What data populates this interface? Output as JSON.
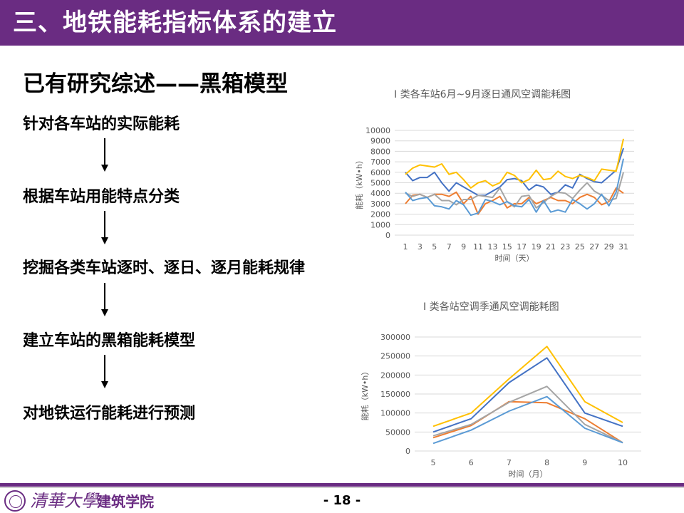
{
  "header": {
    "title": "三、地铁能耗指标体系的建立"
  },
  "section": {
    "subtitle": "已有研究综述——黑箱模型"
  },
  "flow_steps": [
    "针对各车站的实际能耗",
    "根据车站用能特点分类",
    "挖掘各类车站逐时、逐日、逐月能耗规律",
    "建立车站的黑箱能耗模型",
    "对地铁运行能耗进行预测"
  ],
  "colors": {
    "brand": "#6a2c82",
    "series": [
      "#4472c4",
      "#ed7d31",
      "#a5a5a5",
      "#ffc000",
      "#5b9bd5"
    ]
  },
  "chart_data": [
    {
      "type": "line",
      "title": "I 类各车站6月~9月逐日通风空调能耗图",
      "xlabel": "时间（天）",
      "ylabel": "能耗（kW•h）",
      "x": [
        1,
        2,
        3,
        4,
        5,
        6,
        7,
        8,
        9,
        10,
        11,
        12,
        13,
        14,
        15,
        16,
        17,
        18,
        19,
        20,
        21,
        22,
        23,
        24,
        25,
        26,
        27,
        28,
        29,
        30,
        31
      ],
      "x_tick_labels": [
        "1",
        "3",
        "5",
        "7",
        "9",
        "11",
        "13",
        "15",
        "17",
        "19",
        "21",
        "23",
        "25",
        "27",
        "29",
        "31"
      ],
      "ylim": [
        0,
        10000
      ],
      "y_ticks": [
        0,
        1000,
        2000,
        3000,
        4000,
        5000,
        6000,
        7000,
        8000,
        9000,
        10000
      ],
      "legend": "none",
      "grid": "horizontal",
      "series": [
        {
          "color": "#4472c4",
          "values": [
            6000,
            5200,
            5500,
            5500,
            6000,
            5000,
            4200,
            5000,
            4600,
            4200,
            3800,
            3800,
            4200,
            4600,
            5300,
            5400,
            5200,
            4300,
            4800,
            4600,
            3900,
            4100,
            4800,
            4500,
            5800,
            5400,
            5100,
            5000,
            5600,
            6200,
            8300
          ]
        },
        {
          "color": "#ed7d31",
          "values": [
            3000,
            3800,
            3900,
            3600,
            3900,
            3900,
            3700,
            4100,
            3000,
            3700,
            2000,
            3000,
            3300,
            3700,
            2600,
            3000,
            3000,
            3600,
            3000,
            3300,
            3600,
            3300,
            3300,
            3000,
            3600,
            3900,
            3600,
            2900,
            3200,
            4500,
            4000
          ]
        },
        {
          "color": "#a5a5a5",
          "values": [
            4000,
            3700,
            3900,
            3600,
            3900,
            3300,
            3300,
            2900,
            3400,
            3400,
            3800,
            3700,
            3600,
            4500,
            3200,
            2700,
            3700,
            3800,
            2600,
            3100,
            3700,
            4100,
            4000,
            3500,
            4300,
            5000,
            4200,
            3800,
            3300,
            3500,
            6000
          ]
        },
        {
          "color": "#ffc000",
          "values": [
            5800,
            6400,
            6700,
            6600,
            6500,
            6800,
            5800,
            6000,
            5300,
            4500,
            5000,
            5200,
            4700,
            5000,
            6000,
            5700,
            5000,
            5300,
            6200,
            5300,
            5400,
            6100,
            5600,
            5400,
            5700,
            5500,
            5200,
            6300,
            6200,
            6100,
            9200
          ]
        },
        {
          "color": "#5b9bd5",
          "values": [
            4100,
            3300,
            3500,
            3600,
            2800,
            2700,
            2500,
            3300,
            2900,
            1900,
            2100,
            3400,
            3200,
            2900,
            3200,
            2800,
            2700,
            3400,
            2200,
            3300,
            2200,
            2400,
            2200,
            3400,
            3000,
            2500,
            3000,
            3900,
            2800,
            4100,
            7300
          ]
        }
      ]
    },
    {
      "type": "line",
      "title": "I 类各站空调季通风空调能耗图",
      "xlabel": "时间（月）",
      "ylabel": "能耗（kW•h）",
      "x": [
        5,
        6,
        7,
        8,
        9,
        10
      ],
      "ylim": [
        0,
        300000
      ],
      "y_ticks": [
        0,
        50000,
        100000,
        150000,
        200000,
        250000,
        300000
      ],
      "legend": "none",
      "grid": "horizontal",
      "series": [
        {
          "color": "#4472c4",
          "values": [
            50000,
            85000,
            180000,
            245000,
            100000,
            65000
          ]
        },
        {
          "color": "#ed7d31",
          "values": [
            35000,
            67000,
            130000,
            127000,
            85000,
            22000
          ]
        },
        {
          "color": "#a5a5a5",
          "values": [
            40000,
            70000,
            128000,
            170000,
            70000,
            22000
          ]
        },
        {
          "color": "#ffc000",
          "values": [
            65000,
            100000,
            190000,
            275000,
            130000,
            75000
          ]
        },
        {
          "color": "#5b9bd5",
          "values": [
            20000,
            55000,
            105000,
            143000,
            60000,
            22000
          ]
        }
      ]
    }
  ],
  "footer": {
    "university": "清華大學",
    "department": "建筑学院",
    "page_number": "- 18 -"
  }
}
